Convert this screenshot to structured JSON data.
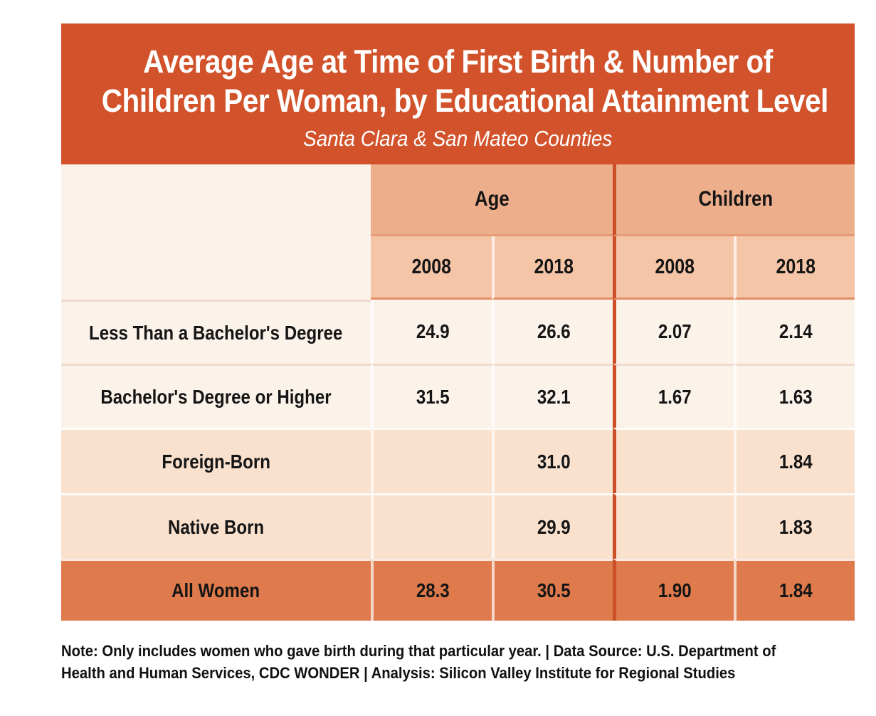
{
  "title": {
    "line1": "Average Age at Time of First Birth & Number of",
    "line2": "Children Per Woman, by Educational Attainment Level",
    "subtitle": "Santa Clara & San Mateo Counties"
  },
  "table": {
    "group_headers": [
      {
        "label": "Age"
      },
      {
        "label": "Children"
      }
    ],
    "year_headers": [
      "2008",
      "2018",
      "2008",
      "2018"
    ],
    "rows": [
      {
        "label": "Less Than a Bachelor's Degree",
        "values": [
          "24.9",
          "26.6",
          "2.07",
          "2.14"
        ]
      },
      {
        "label": "Bachelor's Degree or Higher",
        "values": [
          "31.5",
          "32.1",
          "1.67",
          "1.63"
        ]
      },
      {
        "label": "Foreign-Born",
        "values": [
          "",
          "31.0",
          "",
          "1.84"
        ]
      },
      {
        "label": "Native Born",
        "values": [
          "",
          "29.9",
          "",
          "1.83"
        ]
      },
      {
        "label": "All Women",
        "values": [
          "28.3",
          "30.5",
          "1.90",
          "1.84"
        ]
      }
    ]
  },
  "note": {
    "line1": "Note: Only includes women who gave birth during that particular year.  |  Data Source: U.S. Department of",
    "line2": "Health and Human Services, CDC WONDER  |  Analysis: Silicon Valley Institute for Regional Studies"
  },
  "colors": {
    "title_bg": "#D2532B",
    "group_header_bg": "#EDAE8B",
    "year_header_bg": "#F5C5A7",
    "row_cream_bg": "#FBF2EA",
    "row_peach_bg": "#F9E1CE",
    "total_row_bg": "#DE7A4B",
    "divider": "#CC5027",
    "title_text": "#FFFFFF",
    "table_text": "#151515"
  },
  "chart_data": {
    "type": "table",
    "title": "Average Age at Time of First Birth & Number of Children Per Woman, by Educational Attainment Level",
    "subtitle": "Santa Clara & San Mateo Counties",
    "column_groups": [
      "Age",
      "Children"
    ],
    "columns": [
      "Age 2008",
      "Age 2018",
      "Children 2008",
      "Children 2018"
    ],
    "rows": [
      {
        "label": "Less Than a Bachelor's Degree",
        "age_2008": 24.9,
        "age_2018": 26.6,
        "children_2008": 2.07,
        "children_2018": 2.14
      },
      {
        "label": "Bachelor's Degree or Higher",
        "age_2008": 31.5,
        "age_2018": 32.1,
        "children_2008": 1.67,
        "children_2018": 1.63
      },
      {
        "label": "Foreign-Born",
        "age_2008": null,
        "age_2018": 31.0,
        "children_2008": null,
        "children_2018": 1.84
      },
      {
        "label": "Native Born",
        "age_2008": null,
        "age_2018": 29.9,
        "children_2008": null,
        "children_2018": 1.83
      },
      {
        "label": "All Women",
        "age_2008": 28.3,
        "age_2018": 30.5,
        "children_2008": 1.9,
        "children_2018": 1.84
      }
    ],
    "note": "Note: Only includes women who gave birth during that particular year. | Data Source: U.S. Department of Health and Human Services, CDC WONDER | Analysis: Silicon Valley Institute for Regional Studies"
  }
}
